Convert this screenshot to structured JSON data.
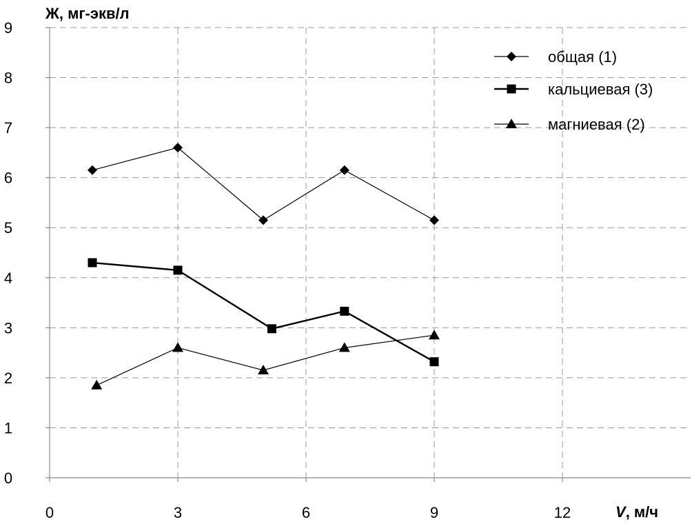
{
  "chart_data": {
    "type": "line",
    "ylabel": "Ж, мг-экв/л",
    "xlabel_var": "V",
    "xlabel_unit": ", м/ч",
    "xlim": [
      0,
      15
    ],
    "ylim": [
      0,
      9
    ],
    "x_ticks": [
      "0",
      "3",
      "6",
      "9",
      "12"
    ],
    "y_ticks": [
      "0",
      "1",
      "2",
      "3",
      "4",
      "5",
      "6",
      "7",
      "8",
      "9"
    ],
    "grid": true,
    "legend_position": "top-right",
    "series": [
      {
        "name": "общая (1)",
        "marker": "diamond",
        "x": [
          1.0,
          3.0,
          5.0,
          6.9,
          9.0
        ],
        "y": [
          6.15,
          6.6,
          5.15,
          6.15,
          5.15
        ]
      },
      {
        "name": "кальциевая (3)",
        "marker": "square",
        "x": [
          1.0,
          3.0,
          5.2,
          6.9,
          9.0
        ],
        "y": [
          4.3,
          4.15,
          2.98,
          3.33,
          2.32
        ]
      },
      {
        "name": "магниевая (2)",
        "marker": "triangle",
        "x": [
          1.1,
          3.0,
          5.0,
          6.9,
          9.0
        ],
        "y": [
          1.85,
          2.6,
          2.15,
          2.6,
          2.85
        ]
      }
    ]
  }
}
